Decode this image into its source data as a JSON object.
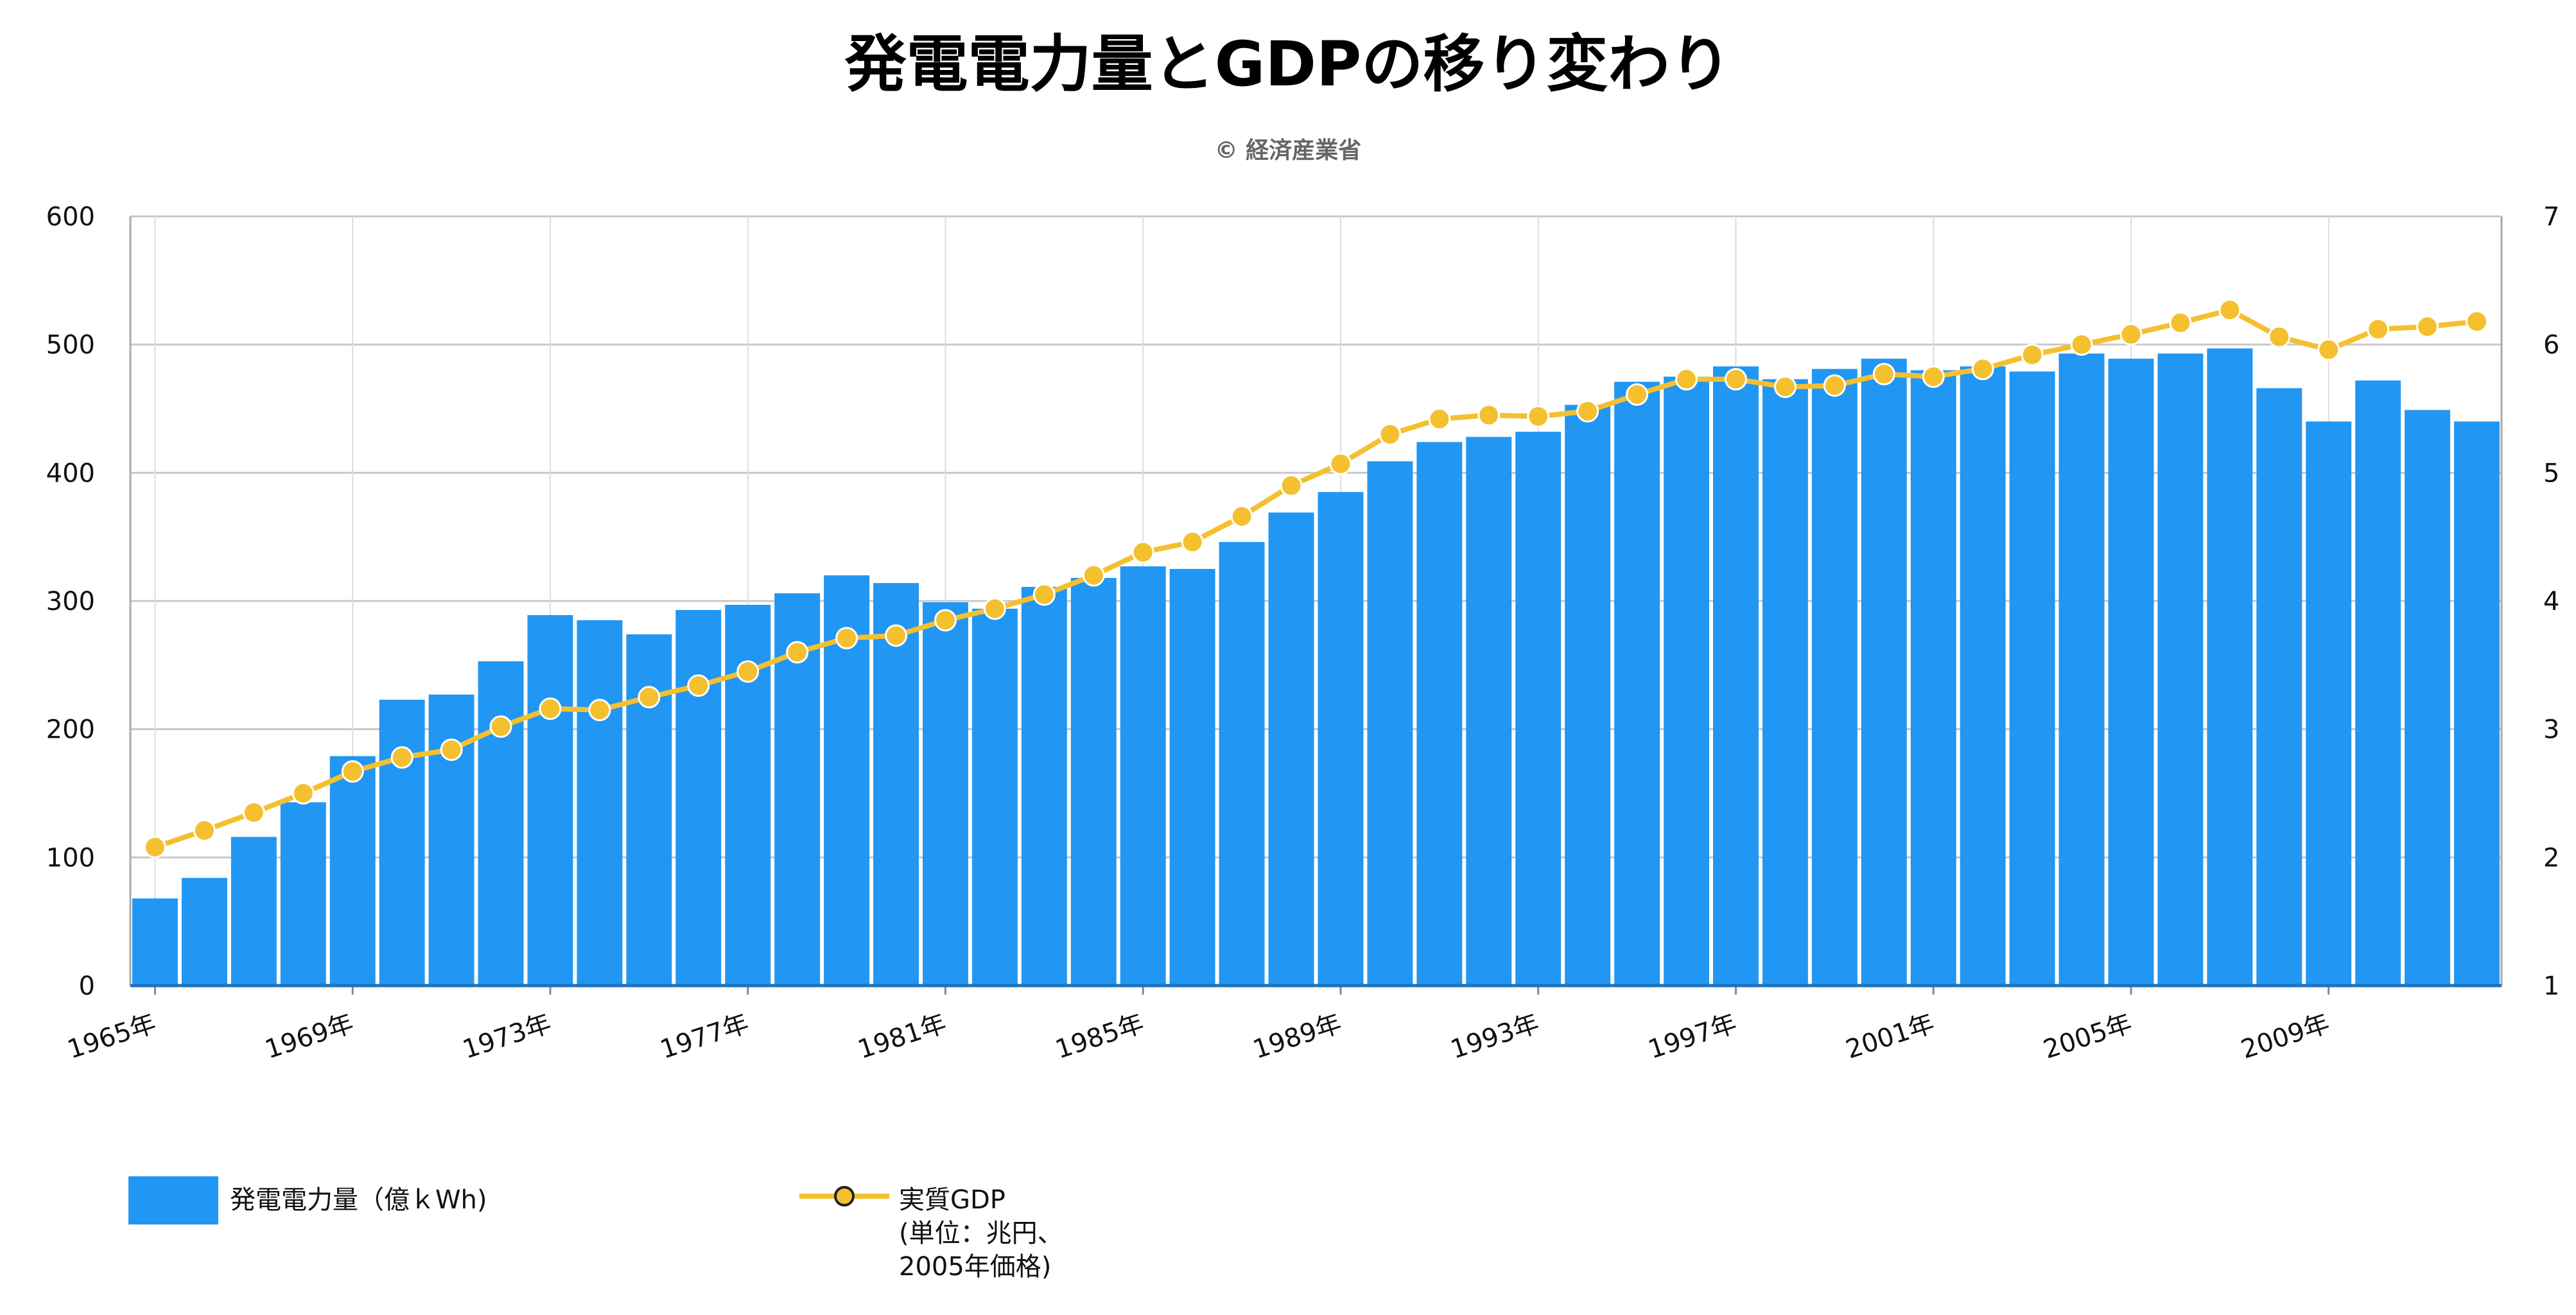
{
  "title": "発電電力量とGDPの移り変わり",
  "subtitle": "© 経済産業省",
  "colors": {
    "bar": "#2196f3",
    "line": "#f4c030",
    "grid": "#c8c8c8",
    "baseline": "#1f6fbd"
  },
  "legend": {
    "bar_label": "発電電力量（億ｋWh)",
    "line_label": "実質GDP\n(単位：兆円、\n2005年価格)"
  },
  "chart_data": {
    "type": "bar",
    "title": "発電電力量とGDPの移り変わり",
    "subtitle": "© 経済産業省",
    "x": [
      "1965年",
      "1966年",
      "1967年",
      "1968年",
      "1969年",
      "1970年",
      "1971年",
      "1972年",
      "1973年",
      "1974年",
      "1975年",
      "1976年",
      "1977年",
      "1978年",
      "1979年",
      "1980年",
      "1981年",
      "1982年",
      "1983年",
      "1984年",
      "1985年",
      "1986年",
      "1987年",
      "1988年",
      "1989年",
      "1990年",
      "1991年",
      "1992年",
      "1993年",
      "1994年",
      "1995年",
      "1996年",
      "1997年",
      "1998年",
      "1999年",
      "2000年",
      "2001年",
      "2002年",
      "2003年",
      "2004年",
      "2005年",
      "2006年",
      "2007年",
      "2008年",
      "2009年",
      "2010年",
      "2011年",
      "2012年"
    ],
    "x_tick_labels": [
      "1965年",
      "1969年",
      "1973年",
      "1977年",
      "1981年",
      "1985年",
      "1989年",
      "1993年",
      "1997年",
      "2001年",
      "2005年",
      "2009年"
    ],
    "y_left": {
      "lim": [
        0,
        600
      ],
      "ticks": [
        0,
        100,
        200,
        300,
        400,
        500,
        600
      ]
    },
    "y_right": {
      "lim": [
        1,
        7
      ],
      "ticks": [
        1,
        2,
        3,
        4,
        5,
        6,
        7
      ]
    },
    "grid": true,
    "legend_position": "bottom-left",
    "series": [
      {
        "name": "発電電力量（億ｋWh)",
        "type": "bar",
        "axis": "left",
        "values": [
          68,
          84,
          116,
          143,
          179,
          223,
          227,
          253,
          289,
          285,
          274,
          293,
          297,
          306,
          320,
          314,
          299,
          294,
          311,
          318,
          327,
          325,
          346,
          369,
          385,
          409,
          424,
          428,
          432,
          453,
          471,
          475,
          483,
          473,
          481,
          489,
          480,
          483,
          479,
          493,
          489,
          493,
          497,
          466,
          440,
          472,
          449,
          440
        ]
      },
      {
        "name": "実質GDP\n(単位：兆円、\n2005年価格)",
        "type": "line",
        "axis": "right",
        "values": [
          2.08,
          2.21,
          2.35,
          2.5,
          2.67,
          2.78,
          2.84,
          3.02,
          3.16,
          3.15,
          3.25,
          3.34,
          3.45,
          3.6,
          3.71,
          3.73,
          3.85,
          3.94,
          4.05,
          4.2,
          4.38,
          4.46,
          4.66,
          4.9,
          5.07,
          5.3,
          5.42,
          5.45,
          5.44,
          5.48,
          5.61,
          5.73,
          5.73,
          5.67,
          5.68,
          5.77,
          5.75,
          5.81,
          5.92,
          6.0,
          6.08,
          6.17,
          6.27,
          6.06,
          5.96,
          6.12,
          6.14,
          6.18
        ]
      }
    ]
  }
}
